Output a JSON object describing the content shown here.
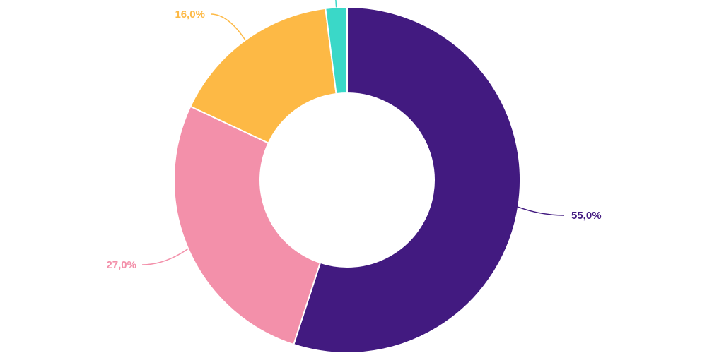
{
  "chart_data": {
    "type": "pie",
    "donut": true,
    "title": "",
    "legend": "none",
    "slices": [
      {
        "label": "55,0%",
        "value": 55.0,
        "color": "#421a80",
        "label_color": "#421a80"
      },
      {
        "label": "27,0%",
        "value": 27.0,
        "color": "#f390aa",
        "label_color": "#f390aa"
      },
      {
        "label": "16,0%",
        "value": 16.0,
        "color": "#fdb945",
        "label_color": "#fdb945"
      },
      {
        "label": "",
        "value": 2.0,
        "color": "#3ad8c8",
        "label_color": "#3ad8c8"
      }
    ]
  }
}
